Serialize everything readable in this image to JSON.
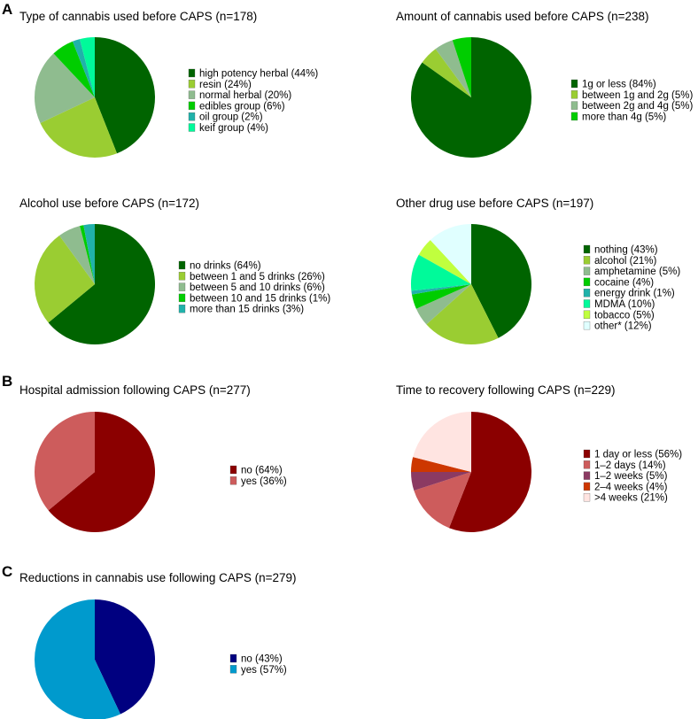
{
  "panel_labels": [
    "A",
    "B",
    "C"
  ],
  "chart_data": [
    {
      "type": "pie",
      "title": "Type of cannabis used before CAPS (n=178)",
      "slices": [
        {
          "label": "high potency herbal (44%)",
          "value": 44,
          "color": "#006400"
        },
        {
          "label": "resin (24%)",
          "value": 24,
          "color": "#9acd32"
        },
        {
          "label": "normal herbal (20%)",
          "value": 20,
          "color": "#8fbc8f"
        },
        {
          "label": "edibles group (6%)",
          "value": 6,
          "color": "#00cd00"
        },
        {
          "label": "oil group (2%)",
          "value": 2,
          "color": "#20b2aa"
        },
        {
          "label": "keif group (4%)",
          "value": 4,
          "color": "#00fa9a"
        }
      ]
    },
    {
      "type": "pie",
      "title": "Amount of cannabis used before CAPS (n=238)",
      "slices": [
        {
          "label": "1g or less (84%)",
          "value": 84,
          "color": "#006400"
        },
        {
          "label": "between 1g and 2g (5%)",
          "value": 5,
          "color": "#9acd32"
        },
        {
          "label": "between 2g and 4g (5%)",
          "value": 5,
          "color": "#8fbc8f"
        },
        {
          "label": "more than 4g (5%)",
          "value": 5,
          "color": "#00cd00"
        }
      ]
    },
    {
      "type": "pie",
      "title": "Alcohol use before CAPS (n=172)",
      "slices": [
        {
          "label": "no drinks (64%)",
          "value": 64,
          "color": "#006400"
        },
        {
          "label": "between 1 and 5 drinks (26%)",
          "value": 26,
          "color": "#9acd32"
        },
        {
          "label": "between 5 and 10 drinks (6%)",
          "value": 6,
          "color": "#8fbc8f"
        },
        {
          "label": "between 10 and 15 drinks (1%)",
          "value": 1,
          "color": "#00cd00"
        },
        {
          "label": "more than 15 drinks (3%)",
          "value": 3,
          "color": "#20b2aa"
        }
      ]
    },
    {
      "type": "pie",
      "title": "Other drug use before CAPS (n=197)",
      "slices": [
        {
          "label": "nothing (43%)",
          "value": 43,
          "color": "#006400"
        },
        {
          "label": "alcohol (21%)",
          "value": 21,
          "color": "#9acd32"
        },
        {
          "label": "amphetamine (5%)",
          "value": 5,
          "color": "#8fbc8f"
        },
        {
          "label": "cocaine (4%)",
          "value": 4,
          "color": "#00cd00"
        },
        {
          "label": "energy drink (1%)",
          "value": 1,
          "color": "#20b2aa"
        },
        {
          "label": "MDMA (10%)",
          "value": 10,
          "color": "#00fa9a"
        },
        {
          "label": "tobacco (5%)",
          "value": 5,
          "color": "#c0ff3e"
        },
        {
          "label": "other* (12%)",
          "value": 12,
          "color": "#e0ffff"
        }
      ]
    },
    {
      "type": "pie",
      "title": "Hospital admission following CAPS (n=277)",
      "slices": [
        {
          "label": "no (64%)",
          "value": 64,
          "color": "#8b0000"
        },
        {
          "label": "yes (36%)",
          "value": 36,
          "color": "#cd5c5c"
        }
      ]
    },
    {
      "type": "pie",
      "title": "Time to recovery following CAPS (n=229)",
      "slices": [
        {
          "label": "1 day or less (56%)",
          "value": 56,
          "color": "#8b0000"
        },
        {
          "label": "1–2 days (14%)",
          "value": 14,
          "color": "#cd5c5c"
        },
        {
          "label": "1–2 weeks (5%)",
          "value": 5,
          "color": "#8b3a62"
        },
        {
          "label": "2–4 weeks (4%)",
          "value": 4,
          "color": "#cd3700"
        },
        {
          "label": ">4 weeks (21%)",
          "value": 21,
          "color": "#ffe4e1"
        }
      ]
    },
    {
      "type": "pie",
      "title": "Reductions in cannabis use following CAPS (n=279)",
      "slices": [
        {
          "label": "no (43%)",
          "value": 43,
          "color": "#000080"
        },
        {
          "label": "yes (57%)",
          "value": 57,
          "color": "#009acd"
        }
      ]
    }
  ]
}
